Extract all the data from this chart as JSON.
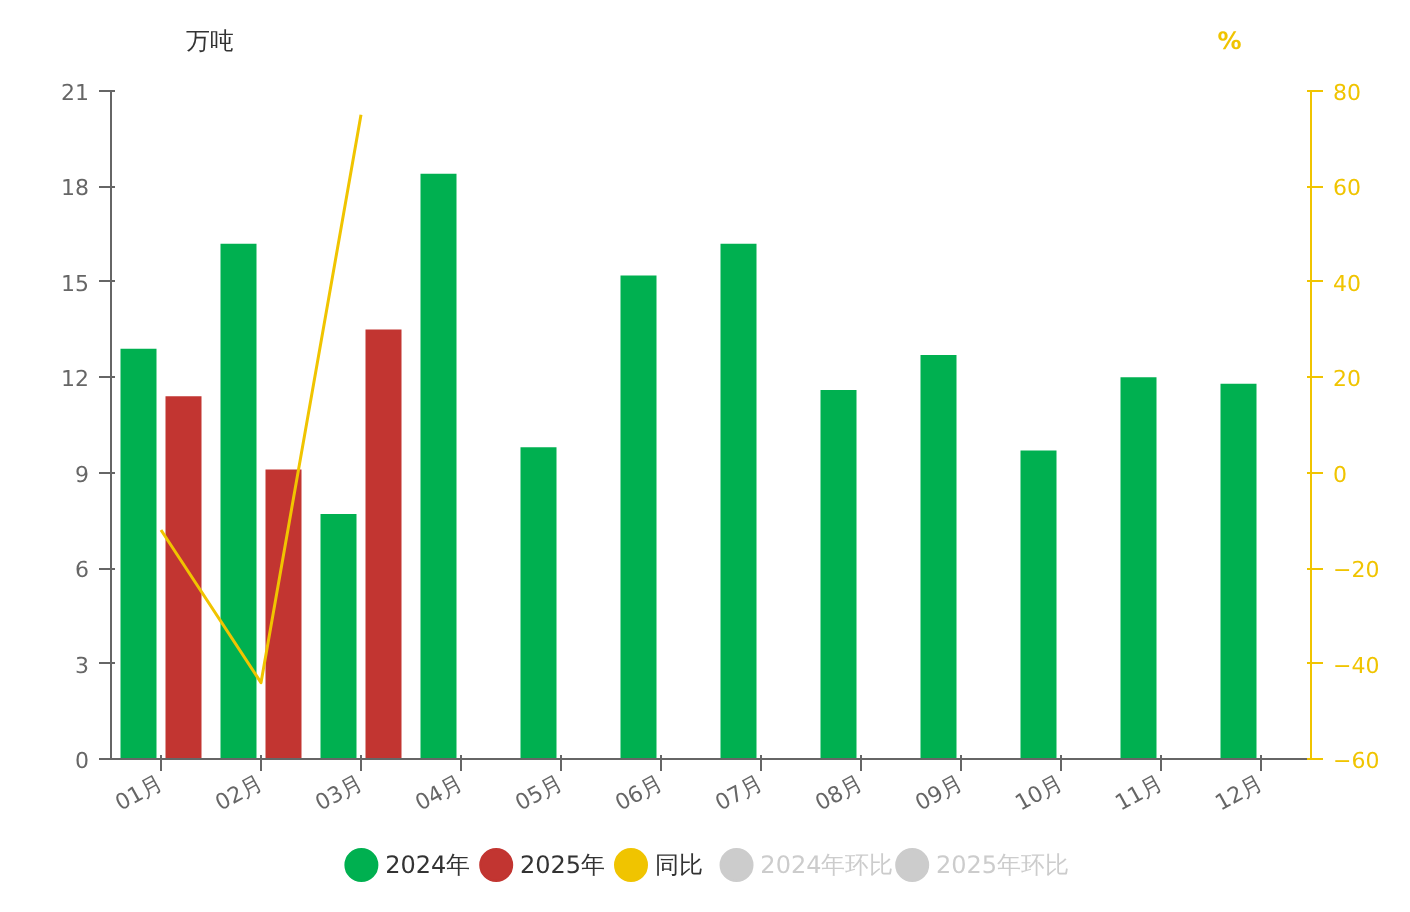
{
  "chart_data": {
    "type": "bar",
    "ylabel": "万吨",
    "y2label": "%",
    "categories": [
      "01月",
      "02月",
      "03月",
      "04月",
      "05月",
      "06月",
      "07月",
      "08月",
      "09月",
      "10月",
      "11月",
      "12月"
    ],
    "series": [
      {
        "name": "2024年",
        "color": "#00b050",
        "values": [
          12.9,
          16.2,
          7.7,
          18.4,
          9.8,
          15.2,
          16.2,
          11.6,
          12.7,
          9.7,
          12.0,
          11.8
        ]
      },
      {
        "name": "2025年",
        "color": "#c23531",
        "values": [
          11.4,
          9.1,
          13.5,
          null,
          null,
          null,
          null,
          null,
          null,
          null,
          null,
          null
        ]
      },
      {
        "name": "同比",
        "type": "line",
        "axis": "y2",
        "color": "#f0c400",
        "values": [
          -12,
          -44,
          75,
          null,
          null,
          null,
          null,
          null,
          null,
          null,
          null,
          null
        ]
      },
      {
        "name": "2024年环比",
        "type": "line",
        "axis": "y2",
        "color": "#cccccc",
        "values": [
          null,
          null,
          null,
          null,
          null,
          null,
          null,
          null,
          null,
          null,
          null,
          null
        ]
      },
      {
        "name": "2025年环比",
        "type": "line",
        "axis": "y2",
        "color": "#cccccc",
        "values": [
          null,
          null,
          null,
          null,
          null,
          null,
          null,
          null,
          null,
          null,
          null,
          null
        ]
      }
    ],
    "ylim": [
      0,
      21
    ],
    "yticks": [
      0,
      3,
      6,
      9,
      12,
      15,
      18,
      21
    ],
    "y2lim": [
      -60,
      80
    ],
    "y2ticks": [
      -60,
      -40,
      -20,
      0,
      20,
      40,
      60,
      80
    ],
    "grid": false,
    "legend": "bottom",
    "marker": "none",
    "line_style": "solid"
  }
}
